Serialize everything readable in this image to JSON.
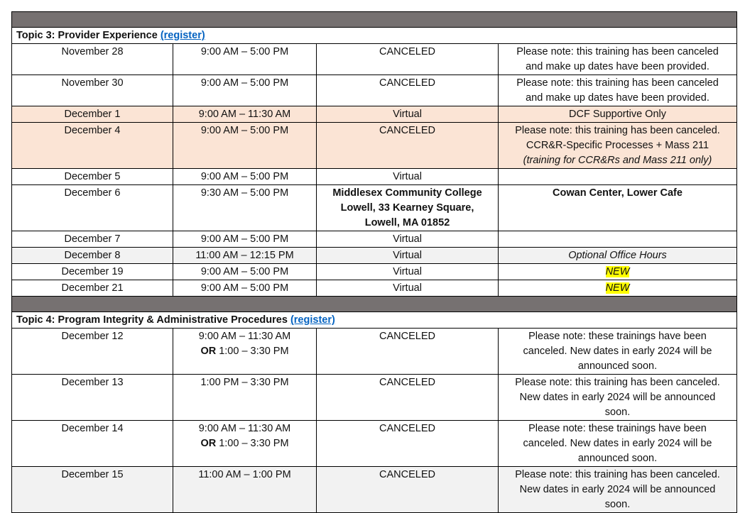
{
  "colors": {
    "header_bar": "#767171",
    "peach": "#fbe4d5",
    "grey": "#f2f2f2",
    "link": "#0563c1",
    "highlight": "#ffff00"
  },
  "sections": [
    {
      "title": "Topic 3: Provider Experience",
      "link": "(register)",
      "rows": [
        {
          "h": 43,
          "bg": "",
          "cells": [
            [
              [
                {
                  "t": "November 28"
                }
              ]
            ],
            [
              [
                {
                  "t": "9:00 AM – 5:00 PM"
                }
              ]
            ],
            [
              [
                {
                  "t": "CANCELED"
                }
              ]
            ],
            [
              [
                {
                  "t": "Please note: this training has been canceled"
                }
              ],
              [
                {
                  "t": "and make up dates have been provided."
                }
              ]
            ]
          ]
        },
        {
          "h": 44,
          "bg": "",
          "cells": [
            [
              [
                {
                  "t": "November 30"
                }
              ]
            ],
            [
              [
                {
                  "t": "9:00 AM – 5:00 PM"
                }
              ]
            ],
            [
              [
                {
                  "t": "CANCELED"
                }
              ]
            ],
            [
              [
                {
                  "t": "Please note: this training has been canceled"
                }
              ],
              [
                {
                  "t": "and make up dates have been provided."
                }
              ]
            ]
          ]
        },
        {
          "h": 21,
          "bg": "peach",
          "cells": [
            [
              [
                {
                  "t": "December 1"
                }
              ]
            ],
            [
              [
                {
                  "t": "9:00 AM – 11:30 AM"
                }
              ]
            ],
            [
              [
                {
                  "t": "Virtual"
                }
              ]
            ],
            [
              [
                {
                  "t": "DCF Supportive Only"
                }
              ]
            ]
          ]
        },
        {
          "h": 65,
          "bg": "peach",
          "cells": [
            [
              [
                {
                  "t": "December 4"
                }
              ]
            ],
            [
              [
                {
                  "t": "9:00 AM – 5:00 PM"
                }
              ]
            ],
            [
              [
                {
                  "t": "CANCELED"
                }
              ]
            ],
            [
              [
                {
                  "t": "Please note: this training has been canceled."
                }
              ],
              [
                {
                  "t": "CCR&R-Specific Processes + Mass 211"
                }
              ],
              [
                {
                  "t": "(training for CCR&Rs and Mass 211 only)",
                  "s": "i"
                }
              ]
            ]
          ]
        },
        {
          "h": 22,
          "bg": "",
          "cells": [
            [
              [
                {
                  "t": "December 5"
                }
              ]
            ],
            [
              [
                {
                  "t": "9:00 AM – 5:00 PM"
                }
              ]
            ],
            [
              [
                {
                  "t": "Virtual"
                }
              ]
            ],
            []
          ]
        },
        {
          "h": 65,
          "bg": "",
          "cells": [
            [
              [
                {
                  "t": "December 6"
                }
              ]
            ],
            [
              [
                {
                  "t": "9:30 AM – 5:00 PM"
                }
              ]
            ],
            [
              [
                {
                  "t": "Middlesex Community College",
                  "s": "b"
                }
              ],
              [
                {
                  "t": "Lowell, 33 Kearney Square,",
                  "s": "b"
                }
              ],
              [
                {
                  "t": "Lowell, MA 01852",
                  "s": "b"
                }
              ]
            ],
            [
              [
                {
                  "t": "Cowan Center, Lower Cafe",
                  "s": "b"
                }
              ]
            ]
          ]
        },
        {
          "h": 21,
          "bg": "",
          "cells": [
            [
              [
                {
                  "t": "December 7"
                }
              ]
            ],
            [
              [
                {
                  "t": "9:00 AM – 5:00 PM"
                }
              ]
            ],
            [
              [
                {
                  "t": "Virtual"
                }
              ]
            ],
            []
          ]
        },
        {
          "h": 22,
          "bg": "grey",
          "cells": [
            [
              [
                {
                  "t": "December 8"
                }
              ]
            ],
            [
              [
                {
                  "t": "11:00 AM – 12:15 PM"
                }
              ]
            ],
            [
              [
                {
                  "t": "Virtual"
                }
              ]
            ],
            [
              [
                {
                  "t": "Optional Office Hours",
                  "s": "i"
                }
              ]
            ]
          ]
        },
        {
          "h": 22,
          "bg": "",
          "cells": [
            [
              [
                {
                  "t": "December 19"
                }
              ]
            ],
            [
              [
                {
                  "t": "9:00 AM – 5:00 PM"
                }
              ]
            ],
            [
              [
                {
                  "t": "Virtual"
                }
              ]
            ],
            [
              [
                {
                  "t": "NEW",
                  "s": "i hl"
                }
              ]
            ]
          ]
        },
        {
          "h": 22,
          "bg": "",
          "cells": [
            [
              [
                {
                  "t": "December 21"
                }
              ]
            ],
            [
              [
                {
                  "t": "9:00 AM – 5:00 PM"
                }
              ]
            ],
            [
              [
                {
                  "t": "Virtual"
                }
              ]
            ],
            [
              [
                {
                  "t": "NEW",
                  "s": "i hl"
                }
              ]
            ]
          ]
        }
      ]
    },
    {
      "title": "Topic 4: Program Integrity & Administrative Procedures",
      "link": "(register)",
      "rows": [
        {
          "h": 64,
          "bg": "",
          "cells": [
            [
              [
                {
                  "t": "December 12"
                }
              ]
            ],
            [
              [
                {
                  "t": "9:00 AM – 11:30 AM"
                }
              ],
              [
                {
                  "t": "OR",
                  "s": "b"
                },
                {
                  "t": " 1:00 – 3:30 PM"
                }
              ]
            ],
            [
              [
                {
                  "t": "CANCELED"
                }
              ]
            ],
            [
              [
                {
                  "t": "Please note: these trainings have been"
                }
              ],
              [
                {
                  "t": "canceled. New dates in early 2024 will be"
                }
              ],
              [
                {
                  "t": "announced soon."
                }
              ]
            ]
          ]
        },
        {
          "h": 64,
          "bg": "",
          "cells": [
            [
              [
                {
                  "t": "December 13"
                }
              ]
            ],
            [
              [
                {
                  "t": "1:00 PM – 3:30 PM"
                }
              ]
            ],
            [
              [
                {
                  "t": "CANCELED"
                }
              ]
            ],
            [
              [
                {
                  "t": "Please note: this training has been canceled."
                }
              ],
              [
                {
                  "t": "New dates in early 2024 will be announced"
                }
              ],
              [
                {
                  "t": "soon."
                }
              ]
            ]
          ]
        },
        {
          "h": 64,
          "bg": "",
          "cells": [
            [
              [
                {
                  "t": "December 14"
                }
              ]
            ],
            [
              [
                {
                  "t": "9:00 AM – 11:30 AM"
                }
              ],
              [
                {
                  "t": "OR",
                  "s": "b"
                },
                {
                  "t": " 1:00 – 3:30 PM"
                }
              ]
            ],
            [
              [
                {
                  "t": "CANCELED"
                }
              ]
            ],
            [
              [
                {
                  "t": "Please note: these trainings have been"
                }
              ],
              [
                {
                  "t": "canceled. New dates in early 2024 will be"
                }
              ],
              [
                {
                  "t": "announced soon."
                }
              ]
            ]
          ]
        },
        {
          "h": 64,
          "bg": "grey",
          "cells": [
            [
              [
                {
                  "t": "December 15"
                }
              ]
            ],
            [
              [
                {
                  "t": "11:00 AM – 1:00 PM"
                }
              ]
            ],
            [
              [
                {
                  "t": "CANCELED"
                }
              ]
            ],
            [
              [
                {
                  "t": "Please note: this training has been canceled."
                }
              ],
              [
                {
                  "t": "New dates in early 2024 will be announced"
                }
              ],
              [
                {
                  "t": "soon."
                }
              ]
            ]
          ]
        }
      ]
    }
  ]
}
